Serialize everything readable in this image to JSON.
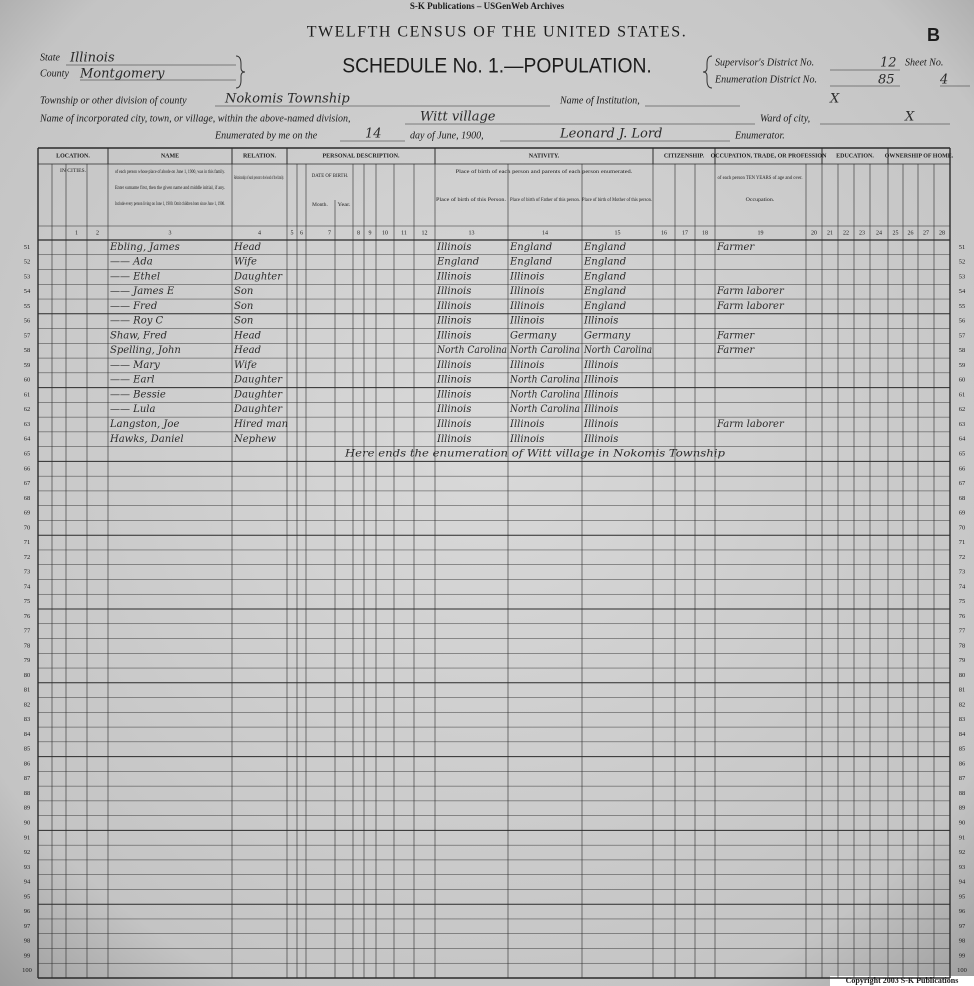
{
  "publisher": "S-K Publications – USGenWeb Archives",
  "header": {
    "title": "TWELFTH CENSUS OF THE UNITED STATES.",
    "corner_mark": "B",
    "schedule": "SCHEDULE No. 1.—POPULATION.",
    "fields": {
      "state": {
        "label": "State",
        "value": "Illinois"
      },
      "county": {
        "label": "County",
        "value": "Montgomery"
      },
      "supervisor_district": {
        "label": "Supervisor's District No.",
        "value": "12"
      },
      "enumeration_district": {
        "label": "Enumeration District No.",
        "value": "85"
      },
      "sheet": {
        "label": "Sheet No.",
        "value": "4"
      },
      "township": {
        "label": "Township or other division of county",
        "value": "Nokomis Township"
      },
      "institution": {
        "label": "Name of Institution,",
        "value": "X"
      },
      "city": {
        "label": "Name of incorporated city, town, or village, within the above-named division,",
        "value": "Witt village"
      },
      "ward": {
        "label": "Ward of city,",
        "value": "X"
      },
      "enumerated_on": {
        "label": "Enumerated by me on the",
        "value": "14"
      },
      "month": {
        "label": "day of June, 1900,",
        "value": "Leonard J. Lord"
      },
      "enumerator": {
        "label": "Enumerator."
      }
    }
  },
  "table": {
    "sections": [
      "LOCATION.",
      "NAME",
      "RELATION.",
      "PERSONAL DESCRIPTION.",
      "NATIVITY.",
      "CITIZENSHIP.",
      "OCCUPATION, TRADE, OR PROFESSION",
      "EDUCATION.",
      "OWNERSHIP OF HOME."
    ],
    "sub_labels": [
      "IN CITIES.",
      "of each person whose place of abode on June 1, 1900, was in this family.",
      "Enter surname first, then the given name and middle initial, if any.",
      "Include every person living on June 1, 1900. Omit children born since June 1, 1900.",
      "Relationship of each person to the head of the family.",
      "DATE OF BIRTH.",
      "Month.",
      "Year.",
      "Place of birth of each person and parents of each person enumerated.",
      "Place of birth of this Person.",
      "Place of birth of Father of this person.",
      "Place of birth of Mother of this person.",
      "of each person TEN YEARS of age and over.",
      "Occupation."
    ],
    "column_numbers": [
      1,
      2,
      3,
      4,
      5,
      6,
      7,
      8,
      9,
      10,
      11,
      12,
      13,
      14,
      15,
      16,
      17,
      18,
      19,
      20,
      21,
      22,
      23,
      24,
      25,
      26,
      27,
      28
    ],
    "row_numbers": [
      51,
      52,
      53,
      54,
      55,
      56,
      57,
      58,
      59,
      60,
      61,
      62,
      63,
      64,
      65,
      66,
      67,
      68,
      69,
      70,
      71,
      72,
      73,
      74,
      75,
      76,
      77,
      78,
      79,
      80,
      81,
      82,
      83,
      84,
      85,
      86,
      87,
      88,
      89,
      90,
      91,
      92,
      93,
      94,
      95,
      96,
      97,
      98,
      99,
      100
    ],
    "entries": [
      {
        "name": "Ebling, James",
        "relation": "Head",
        "birthplace": "Illinois",
        "father_birthplace": "England",
        "mother_birthplace": "England",
        "occupation": "Farmer"
      },
      {
        "name": "—— Ada",
        "relation": "Wife",
        "birthplace": "England",
        "father_birthplace": "England",
        "mother_birthplace": "England"
      },
      {
        "name": "—— Ethel",
        "relation": "Daughter",
        "birthplace": "Illinois",
        "father_birthplace": "Illinois",
        "mother_birthplace": "England"
      },
      {
        "name": "—— James E",
        "relation": "Son",
        "birthplace": "Illinois",
        "father_birthplace": "Illinois",
        "mother_birthplace": "England",
        "occupation": "Farm laborer"
      },
      {
        "name": "—— Fred",
        "relation": "Son",
        "birthplace": "Illinois",
        "father_birthplace": "Illinois",
        "mother_birthplace": "England",
        "occupation": "Farm laborer"
      },
      {
        "name": "—— Roy C",
        "relation": "Son",
        "birthplace": "Illinois",
        "father_birthplace": "Illinois",
        "mother_birthplace": "Illinois"
      },
      {
        "name": "Shaw, Fred",
        "relation": "Head",
        "birthplace": "Illinois",
        "father_birthplace": "Germany",
        "mother_birthplace": "Germany",
        "occupation": "Farmer"
      },
      {
        "name": "Spelling, John",
        "relation": "Head",
        "birthplace": "North Carolina",
        "father_birthplace": "North Carolina",
        "mother_birthplace": "North Carolina",
        "occupation": "Farmer"
      },
      {
        "name": "—— Mary",
        "relation": "Wife",
        "birthplace": "Illinois",
        "father_birthplace": "Illinois",
        "mother_birthplace": "Illinois"
      },
      {
        "name": "—— Earl",
        "relation": "Daughter",
        "birthplace": "Illinois",
        "father_birthplace": "North Carolina",
        "mother_birthplace": "Illinois"
      },
      {
        "name": "—— Bessie",
        "relation": "Daughter",
        "birthplace": "Illinois",
        "father_birthplace": "North Carolina",
        "mother_birthplace": "Illinois"
      },
      {
        "name": "—— Lula",
        "relation": "Daughter",
        "birthplace": "Illinois",
        "father_birthplace": "North Carolina",
        "mother_birthplace": "Illinois"
      },
      {
        "name": "Langston, Joe",
        "relation": "Hired man",
        "birthplace": "Illinois",
        "father_birthplace": "Illinois",
        "mother_birthplace": "Illinois",
        "occupation": "Farm laborer"
      },
      {
        "name": "Hawks, Daniel",
        "relation": "Nephew",
        "birthplace": "Illinois",
        "father_birthplace": "Illinois",
        "mother_birthplace": "Illinois"
      }
    ],
    "closing_note": "Here ends the enumeration of Witt village in Nokomis Township"
  },
  "copyright": "Copyright 2003 S-K Publications"
}
